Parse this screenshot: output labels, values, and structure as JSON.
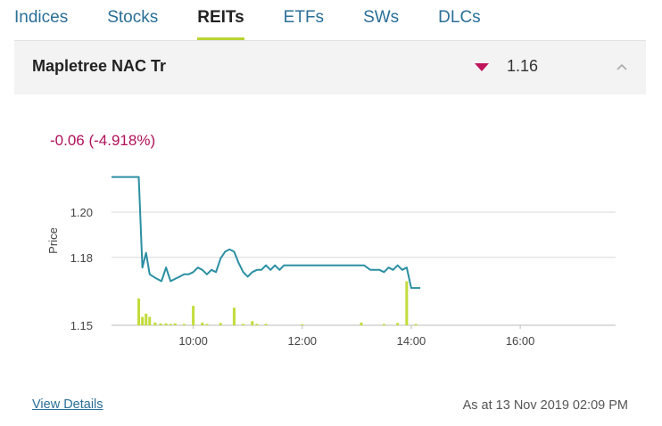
{
  "tabs": [
    {
      "label": "Indices"
    },
    {
      "label": "Stocks"
    },
    {
      "label": "REITs",
      "active": true
    },
    {
      "label": "ETFs"
    },
    {
      "label": "SWs"
    },
    {
      "label": "DLCs"
    }
  ],
  "instrument": {
    "name": "Mapletree NAC Tr",
    "direction_icon": "triangle-down-icon",
    "price": "1.16",
    "collapse_icon": "chevron-up-icon",
    "change": "-0.06 (-4.918%)"
  },
  "colors": {
    "accent": "#b8d432",
    "link": "#2a6f97",
    "down": "#c0145c",
    "line": "#2b8fa3",
    "volume": "#c3dc3a"
  },
  "chart_data": {
    "type": "line",
    "ylabel": "Price",
    "y_ticks": [
      "1.20",
      "1.18",
      "1.15"
    ],
    "x_ticks": [
      "10:00",
      "12:00",
      "14:00",
      "16:00"
    ],
    "ylim": [
      1.15,
      1.21
    ],
    "xlim": [
      "08:30",
      "17:45"
    ],
    "price_series": {
      "x": [
        "08:30",
        "09:00",
        "09:04",
        "09:08",
        "09:12",
        "09:18",
        "09:25",
        "09:30",
        "09:35",
        "09:40",
        "09:45",
        "09:50",
        "09:55",
        "10:00",
        "10:05",
        "10:10",
        "10:15",
        "10:20",
        "10:25",
        "10:30",
        "10:35",
        "10:40",
        "10:45",
        "10:50",
        "10:55",
        "11:00",
        "11:05",
        "11:10",
        "11:15",
        "11:20",
        "11:25",
        "11:30",
        "11:35",
        "11:40",
        "11:45",
        "11:50",
        "12:00",
        "12:20",
        "12:40",
        "13:00",
        "13:08",
        "13:15",
        "13:20",
        "13:25",
        "13:30",
        "13:35",
        "13:40",
        "13:45",
        "13:50",
        "13:55",
        "14:00",
        "14:05",
        "14:10"
      ],
      "y": [
        1.2155,
        1.2155,
        1.1755,
        1.182,
        1.1725,
        1.171,
        1.1695,
        1.1755,
        1.1695,
        1.1705,
        1.1715,
        1.1725,
        1.1725,
        1.1735,
        1.1755,
        1.1745,
        1.1725,
        1.1745,
        1.1735,
        1.1795,
        1.1825,
        1.1835,
        1.1825,
        1.1775,
        1.1735,
        1.1715,
        1.1735,
        1.1745,
        1.1745,
        1.1765,
        1.1745,
        1.1765,
        1.1745,
        1.1765,
        1.1765,
        1.1765,
        1.1765,
        1.1765,
        1.1765,
        1.1765,
        1.1765,
        1.1745,
        1.1745,
        1.1745,
        1.1735,
        1.1755,
        1.1745,
        1.1765,
        1.1745,
        1.1755,
        1.1665,
        1.1665,
        1.1665
      ]
    },
    "volume_series": {
      "x": [
        "09:00",
        "09:04",
        "09:08",
        "09:12",
        "09:18",
        "09:24",
        "09:30",
        "09:35",
        "09:40",
        "09:50",
        "10:00",
        "10:10",
        "10:15",
        "10:30",
        "10:45",
        "10:55",
        "11:05",
        "11:10",
        "11:20",
        "12:00",
        "13:05",
        "13:30",
        "13:45",
        "13:55",
        "14:05"
      ],
      "v": [
        0.58,
        0.18,
        0.25,
        0.18,
        0.06,
        0.04,
        0.04,
        0.03,
        0.04,
        0.03,
        0.42,
        0.06,
        0.03,
        0.05,
        0.38,
        0.03,
        0.09,
        0.03,
        0.03,
        0.02,
        0.06,
        0.03,
        0.05,
        0.95,
        0.03
      ]
    }
  },
  "footer": {
    "view_details": "View Details",
    "as_at": "As at 13 Nov 2019 02:09 PM"
  }
}
